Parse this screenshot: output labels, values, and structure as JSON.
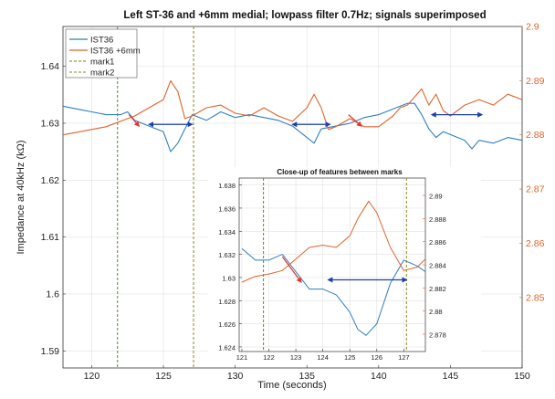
{
  "chart_data": {
    "type": "line",
    "title": "Left ST-36 and +6mm medial; lowpass filter 0.7Hz; signals superimposed",
    "xlabel": "Time (seconds)",
    "ylabel": "Impedance at 40kHz (kΩ)",
    "xlim": [
      118,
      150
    ],
    "ylim_left": [
      1.587,
      1.647
    ],
    "ylim_right": [
      2.837,
      2.9
    ],
    "x_ticks": [
      "120",
      "125",
      "130",
      "135",
      "140",
      "145",
      "150"
    ],
    "y_ticks_left": [
      "1.59",
      "1.6",
      "1.61",
      "1.62",
      "1.63",
      "1.64"
    ],
    "y_ticks_right": [
      "2.85",
      "2.86",
      "2.87",
      "2.88",
      "2.89",
      "2.9"
    ],
    "grid": true,
    "legend_position": "top-left",
    "legend": [
      "IST36",
      "IST36 +6mm",
      "mark1",
      "mark2"
    ],
    "colors": {
      "IST36": "#2f7fc1",
      "IST36 +6mm": "#e0642a",
      "mark1": "#5a8a2a",
      "mark2": "#8a8a1a",
      "right_axis": "#e0642a",
      "red_arrow": "#e8332a",
      "blue_arrow": "#1f3fa8"
    },
    "series": [
      {
        "name": "IST36",
        "axis": "left",
        "points": [
          [
            118,
            1.633
          ],
          [
            119,
            1.6325
          ],
          [
            120,
            1.632
          ],
          [
            121,
            1.6315
          ],
          [
            122,
            1.6315
          ],
          [
            122.5,
            1.632
          ],
          [
            123,
            1.6305
          ],
          [
            124,
            1.6295
          ],
          [
            125,
            1.6285
          ],
          [
            125.5,
            1.625
          ],
          [
            126,
            1.6265
          ],
          [
            127,
            1.6315
          ],
          [
            128,
            1.6305
          ],
          [
            129,
            1.632
          ],
          [
            130,
            1.631
          ],
          [
            131,
            1.6315
          ],
          [
            132,
            1.631
          ],
          [
            133,
            1.6305
          ],
          [
            134,
            1.6295
          ],
          [
            135,
            1.6275
          ],
          [
            135.5,
            1.6265
          ],
          [
            136,
            1.629
          ],
          [
            137,
            1.6295
          ],
          [
            138,
            1.63
          ],
          [
            139,
            1.631
          ],
          [
            140,
            1.6315
          ],
          [
            141,
            1.6325
          ],
          [
            142,
            1.6335
          ],
          [
            142.5,
            1.6335
          ],
          [
            143,
            1.6315
          ],
          [
            143.5,
            1.629
          ],
          [
            144,
            1.6275
          ],
          [
            144.5,
            1.6285
          ],
          [
            145,
            1.628
          ],
          [
            146,
            1.627
          ],
          [
            146.5,
            1.6255
          ],
          [
            147,
            1.627
          ],
          [
            148,
            1.6265
          ],
          [
            149,
            1.6275
          ],
          [
            150,
            1.627
          ]
        ]
      },
      {
        "name": "IST36 +6mm",
        "axis": "right",
        "points": [
          [
            118,
            2.88
          ],
          [
            119,
            2.8805
          ],
          [
            120,
            2.881
          ],
          [
            121,
            2.8815
          ],
          [
            122,
            2.8825
          ],
          [
            123,
            2.8835
          ],
          [
            124,
            2.885
          ],
          [
            125,
            2.8865
          ],
          [
            125.5,
            2.89
          ],
          [
            126,
            2.888
          ],
          [
            126.5,
            2.883
          ],
          [
            127,
            2.8835
          ],
          [
            128,
            2.885
          ],
          [
            129,
            2.8855
          ],
          [
            130,
            2.884
          ],
          [
            131,
            2.8835
          ],
          [
            132,
            2.885
          ],
          [
            133,
            2.8835
          ],
          [
            134,
            2.8825
          ],
          [
            135,
            2.885
          ],
          [
            135.5,
            2.8875
          ],
          [
            136,
            2.885
          ],
          [
            136.5,
            2.881
          ],
          [
            137,
            2.8815
          ],
          [
            138,
            2.883
          ],
          [
            139,
            2.8815
          ],
          [
            140,
            2.8815
          ],
          [
            141,
            2.8835
          ],
          [
            141.5,
            2.885
          ],
          [
            142,
            2.8855
          ],
          [
            143,
            2.8885
          ],
          [
            143.5,
            2.8855
          ],
          [
            144,
            2.8875
          ],
          [
            144.5,
            2.8845
          ],
          [
            145,
            2.8835
          ],
          [
            146,
            2.8855
          ],
          [
            147,
            2.8865
          ],
          [
            148,
            2.8855
          ],
          [
            149,
            2.8875
          ],
          [
            150,
            2.8865
          ]
        ]
      }
    ],
    "marks": [
      {
        "name": "mark1",
        "x": 121.8
      },
      {
        "name": "mark2",
        "x": 127.1
      }
    ],
    "red_arrows": [
      {
        "from": [
          122.6,
          1.6315
        ],
        "to": [
          123.3,
          1.6295
        ]
      },
      {
        "from": [
          137.9,
          1.6315
        ],
        "to": [
          138.8,
          1.6295
        ]
      }
    ],
    "blue_arrows": [
      {
        "from": [
          124.0,
          1.6298
        ],
        "to": [
          127.0,
          1.6298
        ]
      },
      {
        "from": [
          134.0,
          1.6298
        ],
        "to": [
          136.6,
          1.6298
        ]
      },
      {
        "from": [
          143.7,
          1.6315
        ],
        "to": [
          147.2,
          1.6315
        ]
      }
    ],
    "inset": {
      "title": "Close-up of features between marks",
      "xlim": [
        120.9,
        127.8
      ],
      "ylim_left": [
        1.6236,
        1.6386
      ],
      "ylim_right": [
        2.8765,
        2.8915
      ],
      "x_ticks": [
        "121",
        "122",
        "123",
        "124",
        "125",
        "126",
        "127"
      ],
      "y_ticks_left": [
        "1.624",
        "1.626",
        "1.628",
        "1.63",
        "1.632",
        "1.634",
        "1.636",
        "1.638"
      ],
      "y_ticks_right": [
        "2.878",
        "2.88",
        "2.882",
        "2.884",
        "2.886",
        "2.888",
        "2.89"
      ],
      "marks": [
        121.8,
        127.1
      ],
      "series": [
        {
          "name": "IST36",
          "axis": "left",
          "points": [
            [
              121,
              1.6325
            ],
            [
              121.5,
              1.6315
            ],
            [
              122,
              1.6315
            ],
            [
              122.5,
              1.632
            ],
            [
              123,
              1.6305
            ],
            [
              123.5,
              1.629
            ],
            [
              124,
              1.629
            ],
            [
              124.5,
              1.6285
            ],
            [
              125,
              1.627
            ],
            [
              125.3,
              1.6255
            ],
            [
              125.6,
              1.625
            ],
            [
              126,
              1.626
            ],
            [
              126.5,
              1.6295
            ],
            [
              127,
              1.6315
            ],
            [
              127.5,
              1.631
            ],
            [
              127.8,
              1.6305
            ]
          ]
        },
        {
          "name": "IST36 +6mm",
          "axis": "right",
          "points": [
            [
              121,
              2.8825
            ],
            [
              121.5,
              2.883
            ],
            [
              122,
              2.8832
            ],
            [
              122.5,
              2.8835
            ],
            [
              123,
              2.8845
            ],
            [
              123.5,
              2.8855
            ],
            [
              124,
              2.8857
            ],
            [
              124.5,
              2.8855
            ],
            [
              125,
              2.8865
            ],
            [
              125.3,
              2.888
            ],
            [
              125.7,
              2.8895
            ],
            [
              126,
              2.8885
            ],
            [
              126.5,
              2.8855
            ],
            [
              127,
              2.8835
            ],
            [
              127.5,
              2.8838
            ],
            [
              127.8,
              2.8845
            ]
          ]
        }
      ],
      "red_arrows": [
        {
          "from": [
            122.5,
            1.6318
          ],
          "to": [
            123.2,
            1.6296
          ]
        }
      ],
      "blue_arrows": [
        {
          "from": [
            124.2,
            1.6298
          ],
          "to": [
            127.1,
            1.6298
          ]
        }
      ]
    }
  }
}
